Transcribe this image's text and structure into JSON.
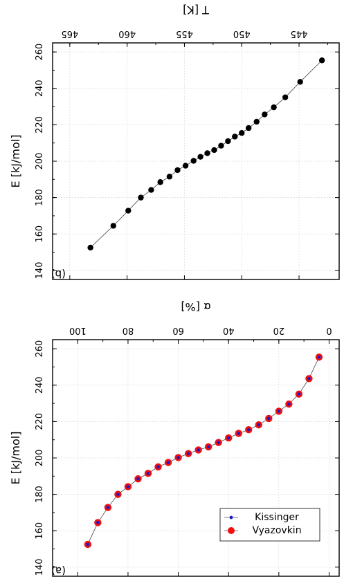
{
  "chart_data": [
    {
      "panel": "(a)",
      "type": "scatter",
      "xlabel": "α [%]",
      "ylabel": "E [kJ/mol]",
      "xlim": [
        -4,
        110
      ],
      "ylim": [
        135,
        265
      ],
      "xticks": [
        0,
        20,
        40,
        60,
        80,
        100
      ],
      "yticks": [
        140,
        160,
        180,
        200,
        220,
        240,
        260
      ],
      "grid": true,
      "legend": {
        "placement": "lower-right",
        "entries": [
          "Kissinger",
          "Vyazovkin"
        ]
      },
      "series": [
        {
          "name": "Kissinger",
          "marker": "small-dot",
          "color": "#1a1acc",
          "x": [
            4,
            8,
            12,
            16,
            20,
            24,
            28,
            32,
            36,
            40,
            44,
            48,
            52,
            56,
            60,
            64,
            68,
            72,
            76,
            80,
            84,
            88,
            92,
            96
          ],
          "y": [
            255.4,
            243.6,
            235.1,
            229.6,
            225.7,
            221.7,
            218.2,
            215.5,
            213.5,
            211.0,
            208.5,
            206.1,
            204.4,
            202.4,
            200.2,
            197.5,
            195.1,
            191.5,
            188.5,
            184.2,
            180.0,
            172.8,
            164.5,
            152.5
          ]
        },
        {
          "name": "Vyazovkin",
          "marker": "large-dot",
          "color": "#ee1111",
          "x": [
            4,
            8,
            12,
            16,
            20,
            24,
            28,
            32,
            36,
            40,
            44,
            48,
            52,
            56,
            60,
            64,
            68,
            72,
            76,
            80,
            84,
            88,
            92,
            96
          ],
          "y": [
            255.4,
            243.6,
            235.1,
            229.6,
            225.7,
            221.7,
            218.2,
            215.5,
            213.5,
            211.0,
            208.5,
            206.1,
            204.4,
            202.4,
            200.2,
            197.5,
            195.1,
            191.5,
            188.5,
            184.2,
            180.0,
            172.8,
            164.5,
            152.5
          ]
        }
      ]
    },
    {
      "panel": "(b)",
      "type": "scatter",
      "xlabel": "T [K]",
      "ylabel": "E [kJ/mol]",
      "xlim": [
        441.5,
        466.5
      ],
      "ylim": [
        135,
        265
      ],
      "xticks": [
        445,
        450,
        455,
        460,
        465
      ],
      "yticks": [
        140,
        160,
        180,
        200,
        220,
        240,
        260
      ],
      "grid": true,
      "series": [
        {
          "name": "",
          "marker": "dot",
          "color": "#000000",
          "x": [
            443.0,
            444.9,
            446.2,
            447.2,
            448.0,
            448.7,
            449.4,
            450.0,
            450.6,
            451.2,
            451.8,
            452.4,
            453.0,
            453.6,
            454.2,
            454.9,
            455.6,
            456.3,
            457.1,
            457.9,
            458.8,
            459.9,
            461.2,
            463.2
          ],
          "y": [
            255.4,
            243.6,
            235.1,
            229.6,
            225.7,
            221.7,
            218.2,
            215.5,
            213.5,
            211.0,
            208.5,
            206.1,
            204.4,
            202.4,
            200.2,
            197.5,
            195.1,
            191.5,
            188.5,
            184.2,
            180.0,
            172.8,
            164.5,
            152.5
          ]
        }
      ]
    }
  ]
}
